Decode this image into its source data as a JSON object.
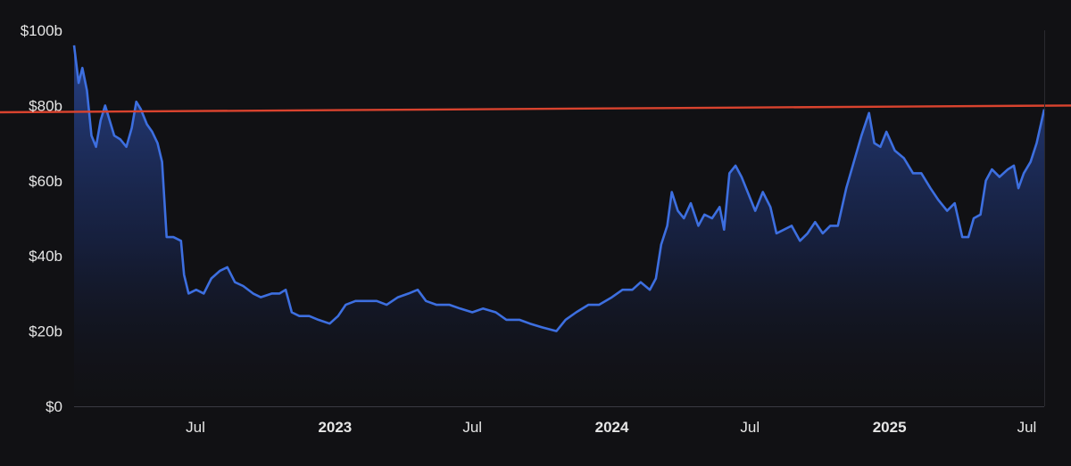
{
  "chart_data": {
    "type": "area",
    "title": "",
    "xlabel": "",
    "ylabel": "",
    "ylim": [
      0,
      100
    ],
    "xlim": [
      "2022-01-22",
      "2025-07-24"
    ],
    "grid": false,
    "y_ticks": [
      {
        "value": 100,
        "label": "$100b"
      },
      {
        "value": 80,
        "label": "$80b"
      },
      {
        "value": 60,
        "label": "$60b"
      },
      {
        "value": 40,
        "label": "$40b"
      },
      {
        "value": 20,
        "label": "$20b"
      },
      {
        "value": 0,
        "label": "$0"
      }
    ],
    "x_ticks": [
      {
        "date": "2022-07-01",
        "label": "Jul",
        "bold": false
      },
      {
        "date": "2023-01-01",
        "label": "2023",
        "bold": true
      },
      {
        "date": "2023-07-01",
        "label": "Jul",
        "bold": false
      },
      {
        "date": "2024-01-01",
        "label": "2024",
        "bold": true
      },
      {
        "date": "2024-07-01",
        "label": "Jul",
        "bold": false
      },
      {
        "date": "2025-01-01",
        "label": "2025",
        "bold": true
      },
      {
        "date": "2025-07-01",
        "label": "Jul",
        "bold": false
      }
    ],
    "series": [
      {
        "color": "#3d6fe0",
        "points": [
          [
            "2022-01-22",
            96
          ],
          [
            "2022-01-28",
            86
          ],
          [
            "2022-02-02",
            90
          ],
          [
            "2022-02-08",
            84
          ],
          [
            "2022-02-14",
            72
          ],
          [
            "2022-02-20",
            69
          ],
          [
            "2022-02-26",
            76
          ],
          [
            "2022-03-04",
            80
          ],
          [
            "2022-03-10",
            76
          ],
          [
            "2022-03-16",
            72
          ],
          [
            "2022-03-24",
            71
          ],
          [
            "2022-04-01",
            69
          ],
          [
            "2022-04-08",
            74
          ],
          [
            "2022-04-14",
            81
          ],
          [
            "2022-04-20",
            79
          ],
          [
            "2022-04-28",
            75
          ],
          [
            "2022-05-05",
            73
          ],
          [
            "2022-05-12",
            70
          ],
          [
            "2022-05-18",
            65
          ],
          [
            "2022-05-24",
            45
          ],
          [
            "2022-06-02",
            45
          ],
          [
            "2022-06-12",
            44
          ],
          [
            "2022-06-16",
            35
          ],
          [
            "2022-06-22",
            30
          ],
          [
            "2022-07-02",
            31
          ],
          [
            "2022-07-12",
            30
          ],
          [
            "2022-07-22",
            34
          ],
          [
            "2022-08-02",
            36
          ],
          [
            "2022-08-12",
            37
          ],
          [
            "2022-08-22",
            33
          ],
          [
            "2022-09-02",
            32
          ],
          [
            "2022-09-15",
            30
          ],
          [
            "2022-09-25",
            29
          ],
          [
            "2022-10-10",
            30
          ],
          [
            "2022-10-20",
            30
          ],
          [
            "2022-10-28",
            31
          ],
          [
            "2022-11-05",
            25
          ],
          [
            "2022-11-15",
            24
          ],
          [
            "2022-11-28",
            24
          ],
          [
            "2022-12-10",
            23
          ],
          [
            "2022-12-25",
            22
          ],
          [
            "2023-01-05",
            24
          ],
          [
            "2023-01-15",
            27
          ],
          [
            "2023-01-28",
            28
          ],
          [
            "2023-02-10",
            28
          ],
          [
            "2023-02-25",
            28
          ],
          [
            "2023-03-10",
            27
          ],
          [
            "2023-03-25",
            29
          ],
          [
            "2023-04-08",
            30
          ],
          [
            "2023-04-20",
            31
          ],
          [
            "2023-05-01",
            28
          ],
          [
            "2023-05-15",
            27
          ],
          [
            "2023-06-01",
            27
          ],
          [
            "2023-06-15",
            26
          ],
          [
            "2023-07-01",
            25
          ],
          [
            "2023-07-15",
            26
          ],
          [
            "2023-08-01",
            25
          ],
          [
            "2023-08-15",
            23
          ],
          [
            "2023-09-01",
            23
          ],
          [
            "2023-09-15",
            22
          ],
          [
            "2023-10-01",
            21
          ],
          [
            "2023-10-20",
            20
          ],
          [
            "2023-11-01",
            23
          ],
          [
            "2023-11-15",
            25
          ],
          [
            "2023-12-01",
            27
          ],
          [
            "2023-12-15",
            27
          ],
          [
            "2024-01-01",
            29
          ],
          [
            "2024-01-15",
            31
          ],
          [
            "2024-01-28",
            31
          ],
          [
            "2024-02-08",
            33
          ],
          [
            "2024-02-20",
            31
          ],
          [
            "2024-02-28",
            34
          ],
          [
            "2024-03-06",
            43
          ],
          [
            "2024-03-14",
            48
          ],
          [
            "2024-03-20",
            57
          ],
          [
            "2024-03-28",
            52
          ],
          [
            "2024-04-05",
            50
          ],
          [
            "2024-04-14",
            54
          ],
          [
            "2024-04-24",
            48
          ],
          [
            "2024-05-02",
            51
          ],
          [
            "2024-05-12",
            50
          ],
          [
            "2024-05-22",
            53
          ],
          [
            "2024-05-28",
            47
          ],
          [
            "2024-06-04",
            62
          ],
          [
            "2024-06-12",
            64
          ],
          [
            "2024-06-20",
            61
          ],
          [
            "2024-06-28",
            57
          ],
          [
            "2024-07-08",
            52
          ],
          [
            "2024-07-18",
            57
          ],
          [
            "2024-07-28",
            53
          ],
          [
            "2024-08-05",
            46
          ],
          [
            "2024-08-15",
            47
          ],
          [
            "2024-08-25",
            48
          ],
          [
            "2024-09-05",
            44
          ],
          [
            "2024-09-15",
            46
          ],
          [
            "2024-09-25",
            49
          ],
          [
            "2024-10-05",
            46
          ],
          [
            "2024-10-15",
            48
          ],
          [
            "2024-10-25",
            48
          ],
          [
            "2024-11-05",
            58
          ],
          [
            "2024-11-15",
            65
          ],
          [
            "2024-11-25",
            72
          ],
          [
            "2024-12-05",
            78
          ],
          [
            "2024-12-12",
            70
          ],
          [
            "2024-12-20",
            69
          ],
          [
            "2024-12-28",
            73
          ],
          [
            "2025-01-08",
            68
          ],
          [
            "2025-01-20",
            66
          ],
          [
            "2025-02-01",
            62
          ],
          [
            "2025-02-12",
            62
          ],
          [
            "2025-02-24",
            58
          ],
          [
            "2025-03-06",
            55
          ],
          [
            "2025-03-18",
            52
          ],
          [
            "2025-03-28",
            54
          ],
          [
            "2025-04-07",
            45
          ],
          [
            "2025-04-15",
            45
          ],
          [
            "2025-04-22",
            50
          ],
          [
            "2025-05-01",
            51
          ],
          [
            "2025-05-08",
            60
          ],
          [
            "2025-05-16",
            63
          ],
          [
            "2025-05-26",
            61
          ],
          [
            "2025-06-06",
            63
          ],
          [
            "2025-06-14",
            64
          ],
          [
            "2025-06-20",
            58
          ],
          [
            "2025-06-27",
            62
          ],
          [
            "2025-07-06",
            65
          ],
          [
            "2025-07-14",
            70
          ],
          [
            "2025-07-24",
            79
          ]
        ]
      }
    ],
    "reference_line": {
      "color": "#d9432e",
      "start": [
        "2022-01-01",
        78.2
      ],
      "end": [
        "2025-08-01",
        80
      ]
    }
  }
}
